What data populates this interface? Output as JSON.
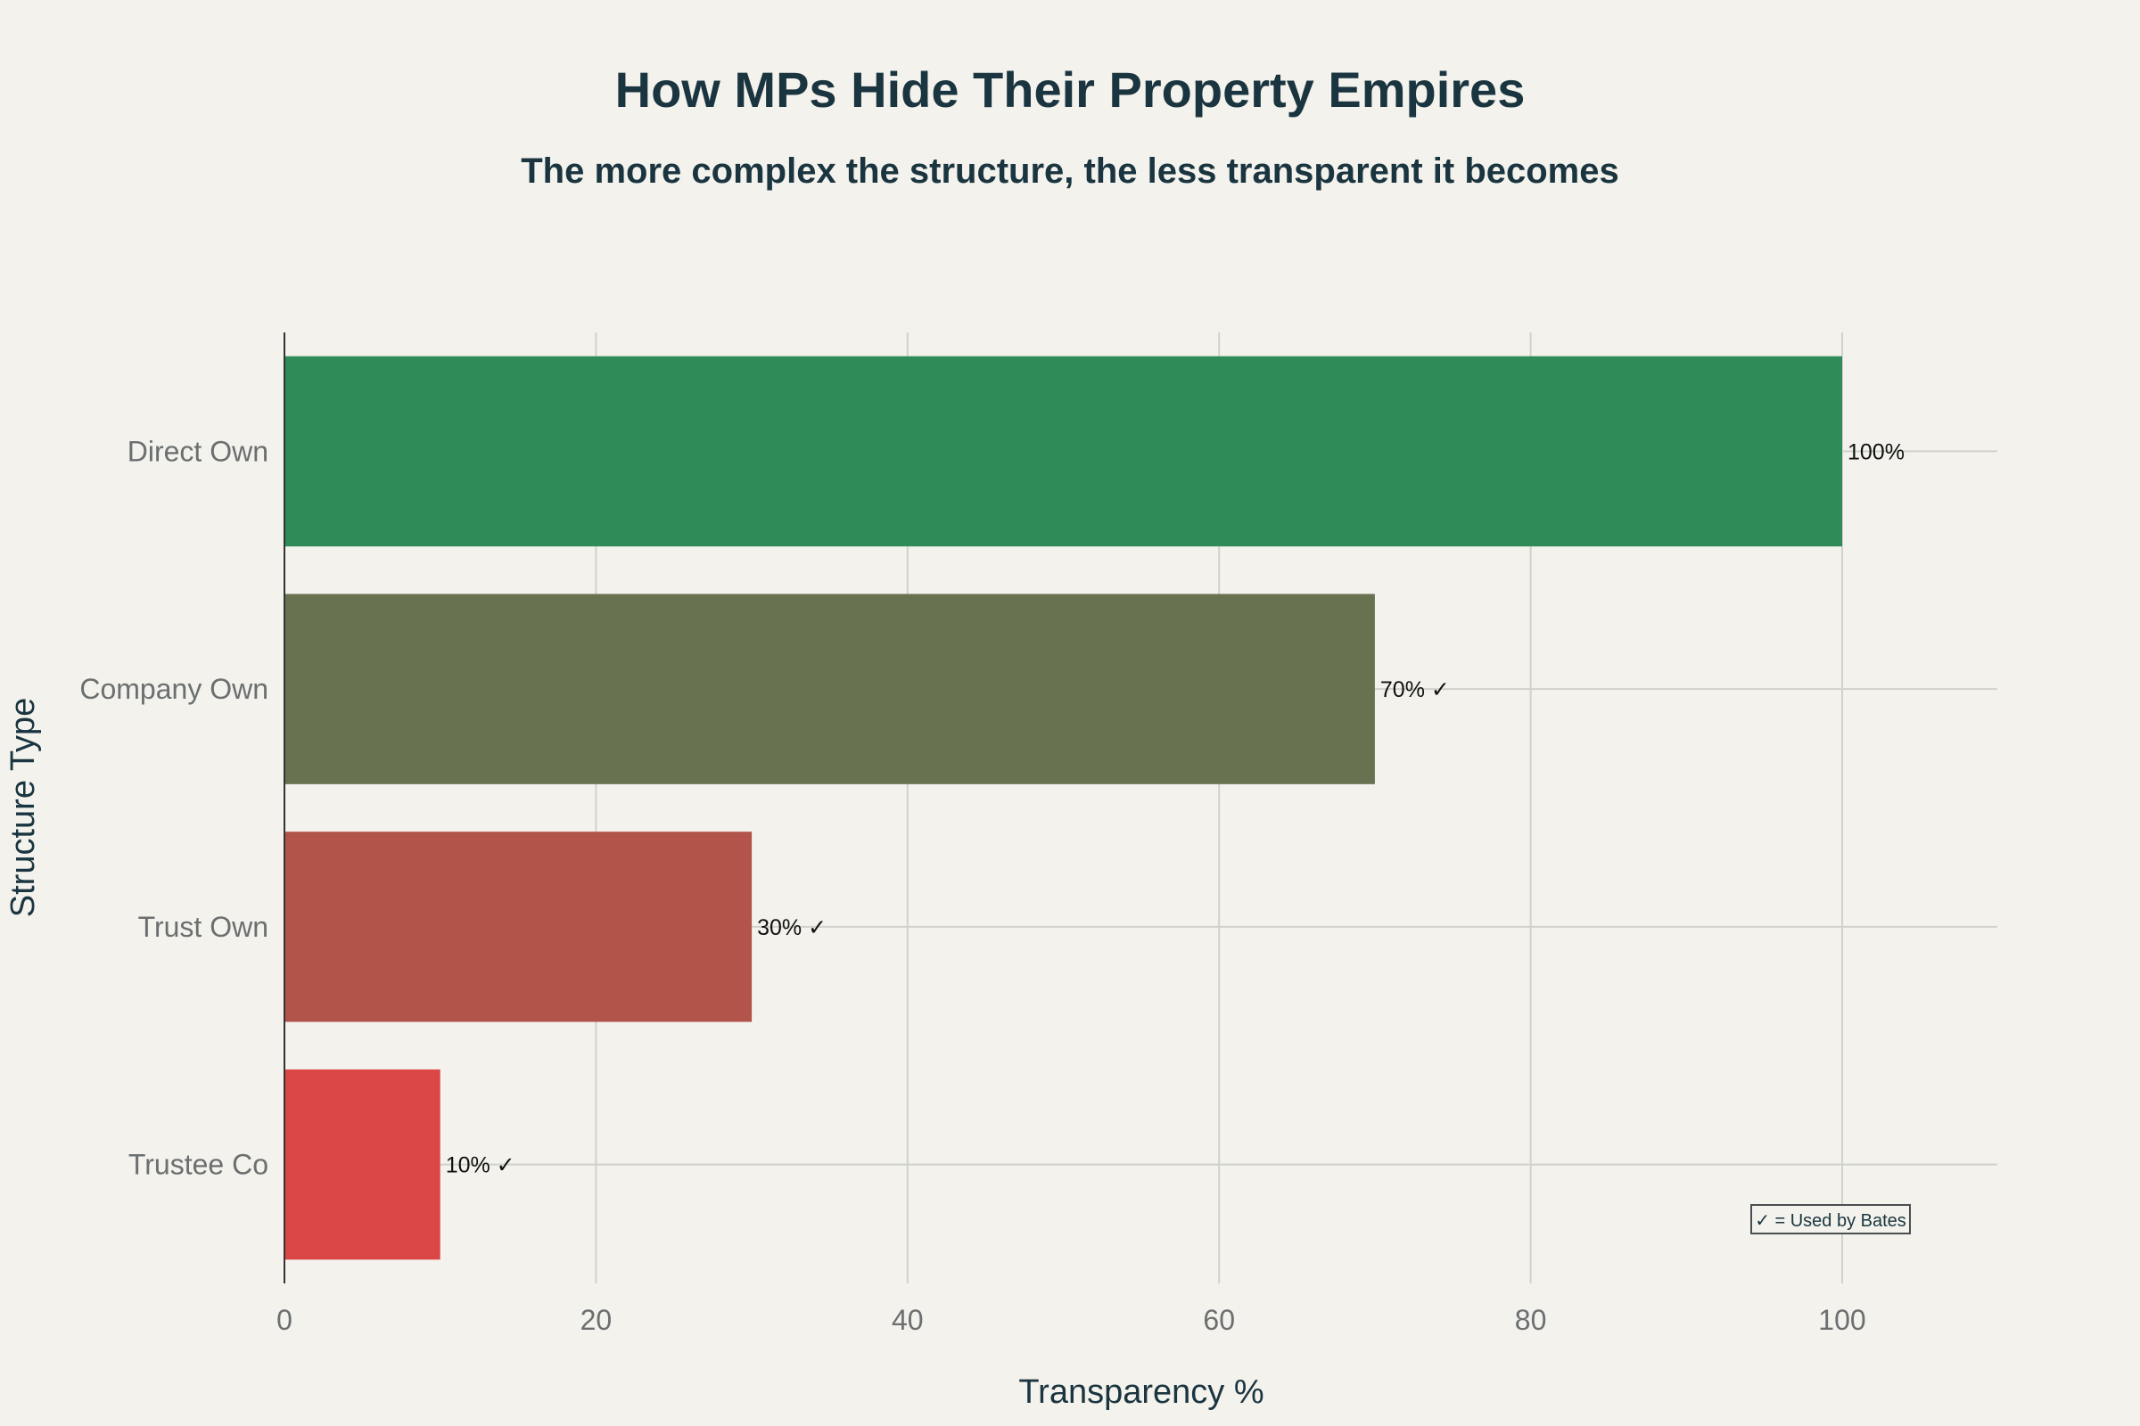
{
  "chart_data": {
    "type": "bar",
    "orientation": "horizontal",
    "title": "How MPs Hide Their Property Empires",
    "subtitle": "The more complex the structure, the less transparent it becomes",
    "xlabel": "Transparency %",
    "ylabel": "Structure Type",
    "categories": [
      "Direct Own",
      "Company Own",
      "Trust Own",
      "Trustee Co"
    ],
    "values": [
      100,
      70,
      30,
      10
    ],
    "data_labels": [
      "100%",
      "70% ✓",
      "30% ✓",
      "10% ✓"
    ],
    "bar_colors": [
      "#2f8b58",
      "#687251",
      "#b2544a",
      "#db4646"
    ],
    "xlim": [
      0,
      110
    ],
    "xticks": [
      0,
      20,
      40,
      60,
      80,
      100
    ],
    "grid": true,
    "annotation": "✓ = Used by Bates",
    "annotation_placement": "bottom-right"
  }
}
